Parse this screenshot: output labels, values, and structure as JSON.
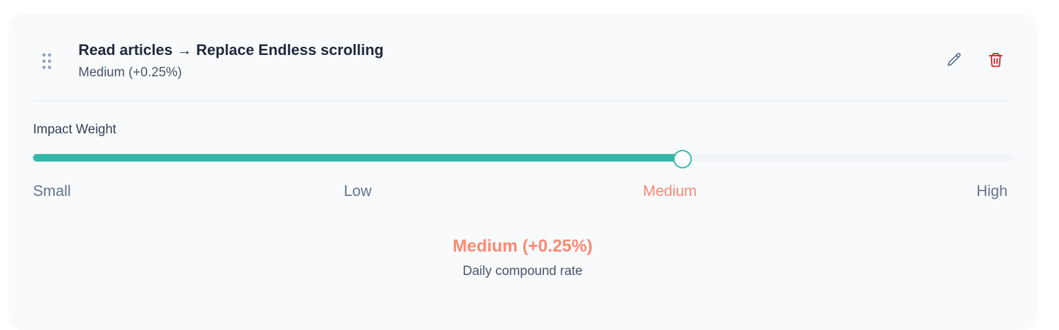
{
  "item": {
    "title": "Read articles → Replace Endless scrolling",
    "subtitle": "Medium (+0.25%)"
  },
  "icons": {
    "drag": "drag-handle-icon",
    "edit": "pencil-icon",
    "delete": "trash-icon"
  },
  "impact": {
    "label": "Impact Weight",
    "value_fraction": 0.663,
    "options": [
      "Small",
      "Low",
      "Medium",
      "High"
    ],
    "selected": "Medium",
    "result": "Medium (+0.25%)",
    "caption": "Daily compound rate"
  },
  "colors": {
    "accent": "#34b8a8",
    "highlight": "#fa8a73",
    "delete": "#dc2626",
    "card_bg": "#f8fafc"
  }
}
